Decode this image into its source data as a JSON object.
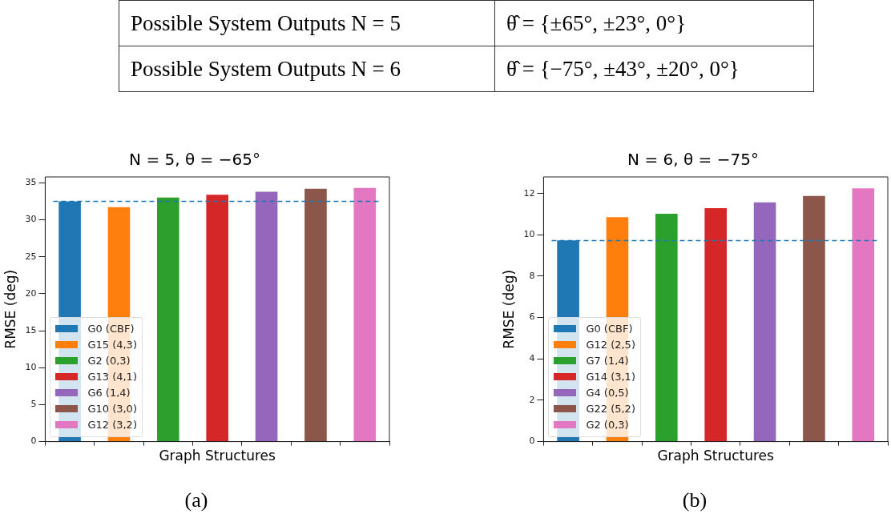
{
  "chart_data": [
    {
      "type": "other",
      "annotations": [
        "Possible System Outputs N = 5",
        "θ̂ = {±65°, ±23°, 0°}",
        "Possible System Outputs N = 6",
        "θ̂ = {−75°, ±43°, ±20°, 0°}"
      ]
    },
    {
      "type": "bar",
      "title": "N = 5, θ = −65°",
      "xlabel": "Graph Structures",
      "ylabel": "RMSE (deg)",
      "categories": [
        null,
        null,
        null,
        null,
        null,
        null,
        null
      ],
      "series": [
        {
          "name": "G0 (CBF)",
          "color": "#1f77b4",
          "values": [
            32.5,
            null,
            null,
            null,
            null,
            null,
            null
          ]
        },
        {
          "name": "G15 (4,3)",
          "color": "#ff7f0e",
          "values": [
            null,
            31.7,
            null,
            null,
            null,
            null,
            null
          ]
        },
        {
          "name": "G2 (0,3)",
          "color": "#2ca02c",
          "values": [
            null,
            null,
            33.0,
            null,
            null,
            null,
            null
          ]
        },
        {
          "name": "G13 (4,1)",
          "color": "#d62728",
          "values": [
            null,
            null,
            null,
            33.4,
            null,
            null,
            null
          ]
        },
        {
          "name": "G6 (1,4)",
          "color": "#9467bd",
          "values": [
            null,
            null,
            null,
            null,
            33.8,
            null,
            null
          ]
        },
        {
          "name": "G10 (3,0)",
          "color": "#8c564b",
          "values": [
            null,
            null,
            null,
            null,
            null,
            34.2,
            null
          ]
        },
        {
          "name": "G12 (3,2)",
          "color": "#e377c2",
          "values": [
            null,
            null,
            null,
            null,
            null,
            null,
            34.3
          ]
        }
      ],
      "ylim": [
        0,
        35.8
      ],
      "yticks": [
        0,
        5,
        10,
        15,
        20,
        25,
        30,
        35
      ],
      "tick_labels": "y",
      "legend": "bottom left",
      "ref_lines": [
        {
          "axis": "y",
          "value": 32.5,
          "color": "#1f77b4",
          "line_style": "dashed"
        }
      ],
      "annotations": [
        "(a)"
      ]
    },
    {
      "type": "bar",
      "title": "N = 6, θ = −75°",
      "xlabel": "Graph Structures",
      "ylabel": "RMSE (deg)",
      "categories": [
        null,
        null,
        null,
        null,
        null,
        null,
        null
      ],
      "series": [
        {
          "name": "G0 (CBF)",
          "color": "#1f77b4",
          "values": [
            9.73,
            null,
            null,
            null,
            null,
            null,
            null
          ]
        },
        {
          "name": "G12 (2,5)",
          "color": "#ff7f0e",
          "values": [
            null,
            10.85,
            null,
            null,
            null,
            null,
            null
          ]
        },
        {
          "name": "G7 (1,4)",
          "color": "#2ca02c",
          "values": [
            null,
            null,
            11.02,
            null,
            null,
            null,
            null
          ]
        },
        {
          "name": "G14 (3,1)",
          "color": "#d62728",
          "values": [
            null,
            null,
            null,
            11.29,
            null,
            null,
            null
          ]
        },
        {
          "name": "G4 (0,5)",
          "color": "#9467bd",
          "values": [
            null,
            null,
            null,
            null,
            11.57,
            null,
            null
          ]
        },
        {
          "name": "G22 (5,2)",
          "color": "#8c564b",
          "values": [
            null,
            null,
            null,
            null,
            null,
            11.88,
            null
          ]
        },
        {
          "name": "G2 (0,3)",
          "color": "#e377c2",
          "values": [
            null,
            null,
            null,
            null,
            null,
            null,
            12.25
          ]
        }
      ],
      "ylim": [
        0,
        12.8
      ],
      "yticks": [
        0,
        2,
        4,
        6,
        8,
        10,
        12
      ],
      "tick_labels": "y",
      "legend": "bottom left",
      "ref_lines": [
        {
          "axis": "y",
          "value": 9.72,
          "color": "#1f77b4",
          "line_style": "dashed"
        }
      ],
      "annotations": [
        "(b)"
      ]
    }
  ]
}
